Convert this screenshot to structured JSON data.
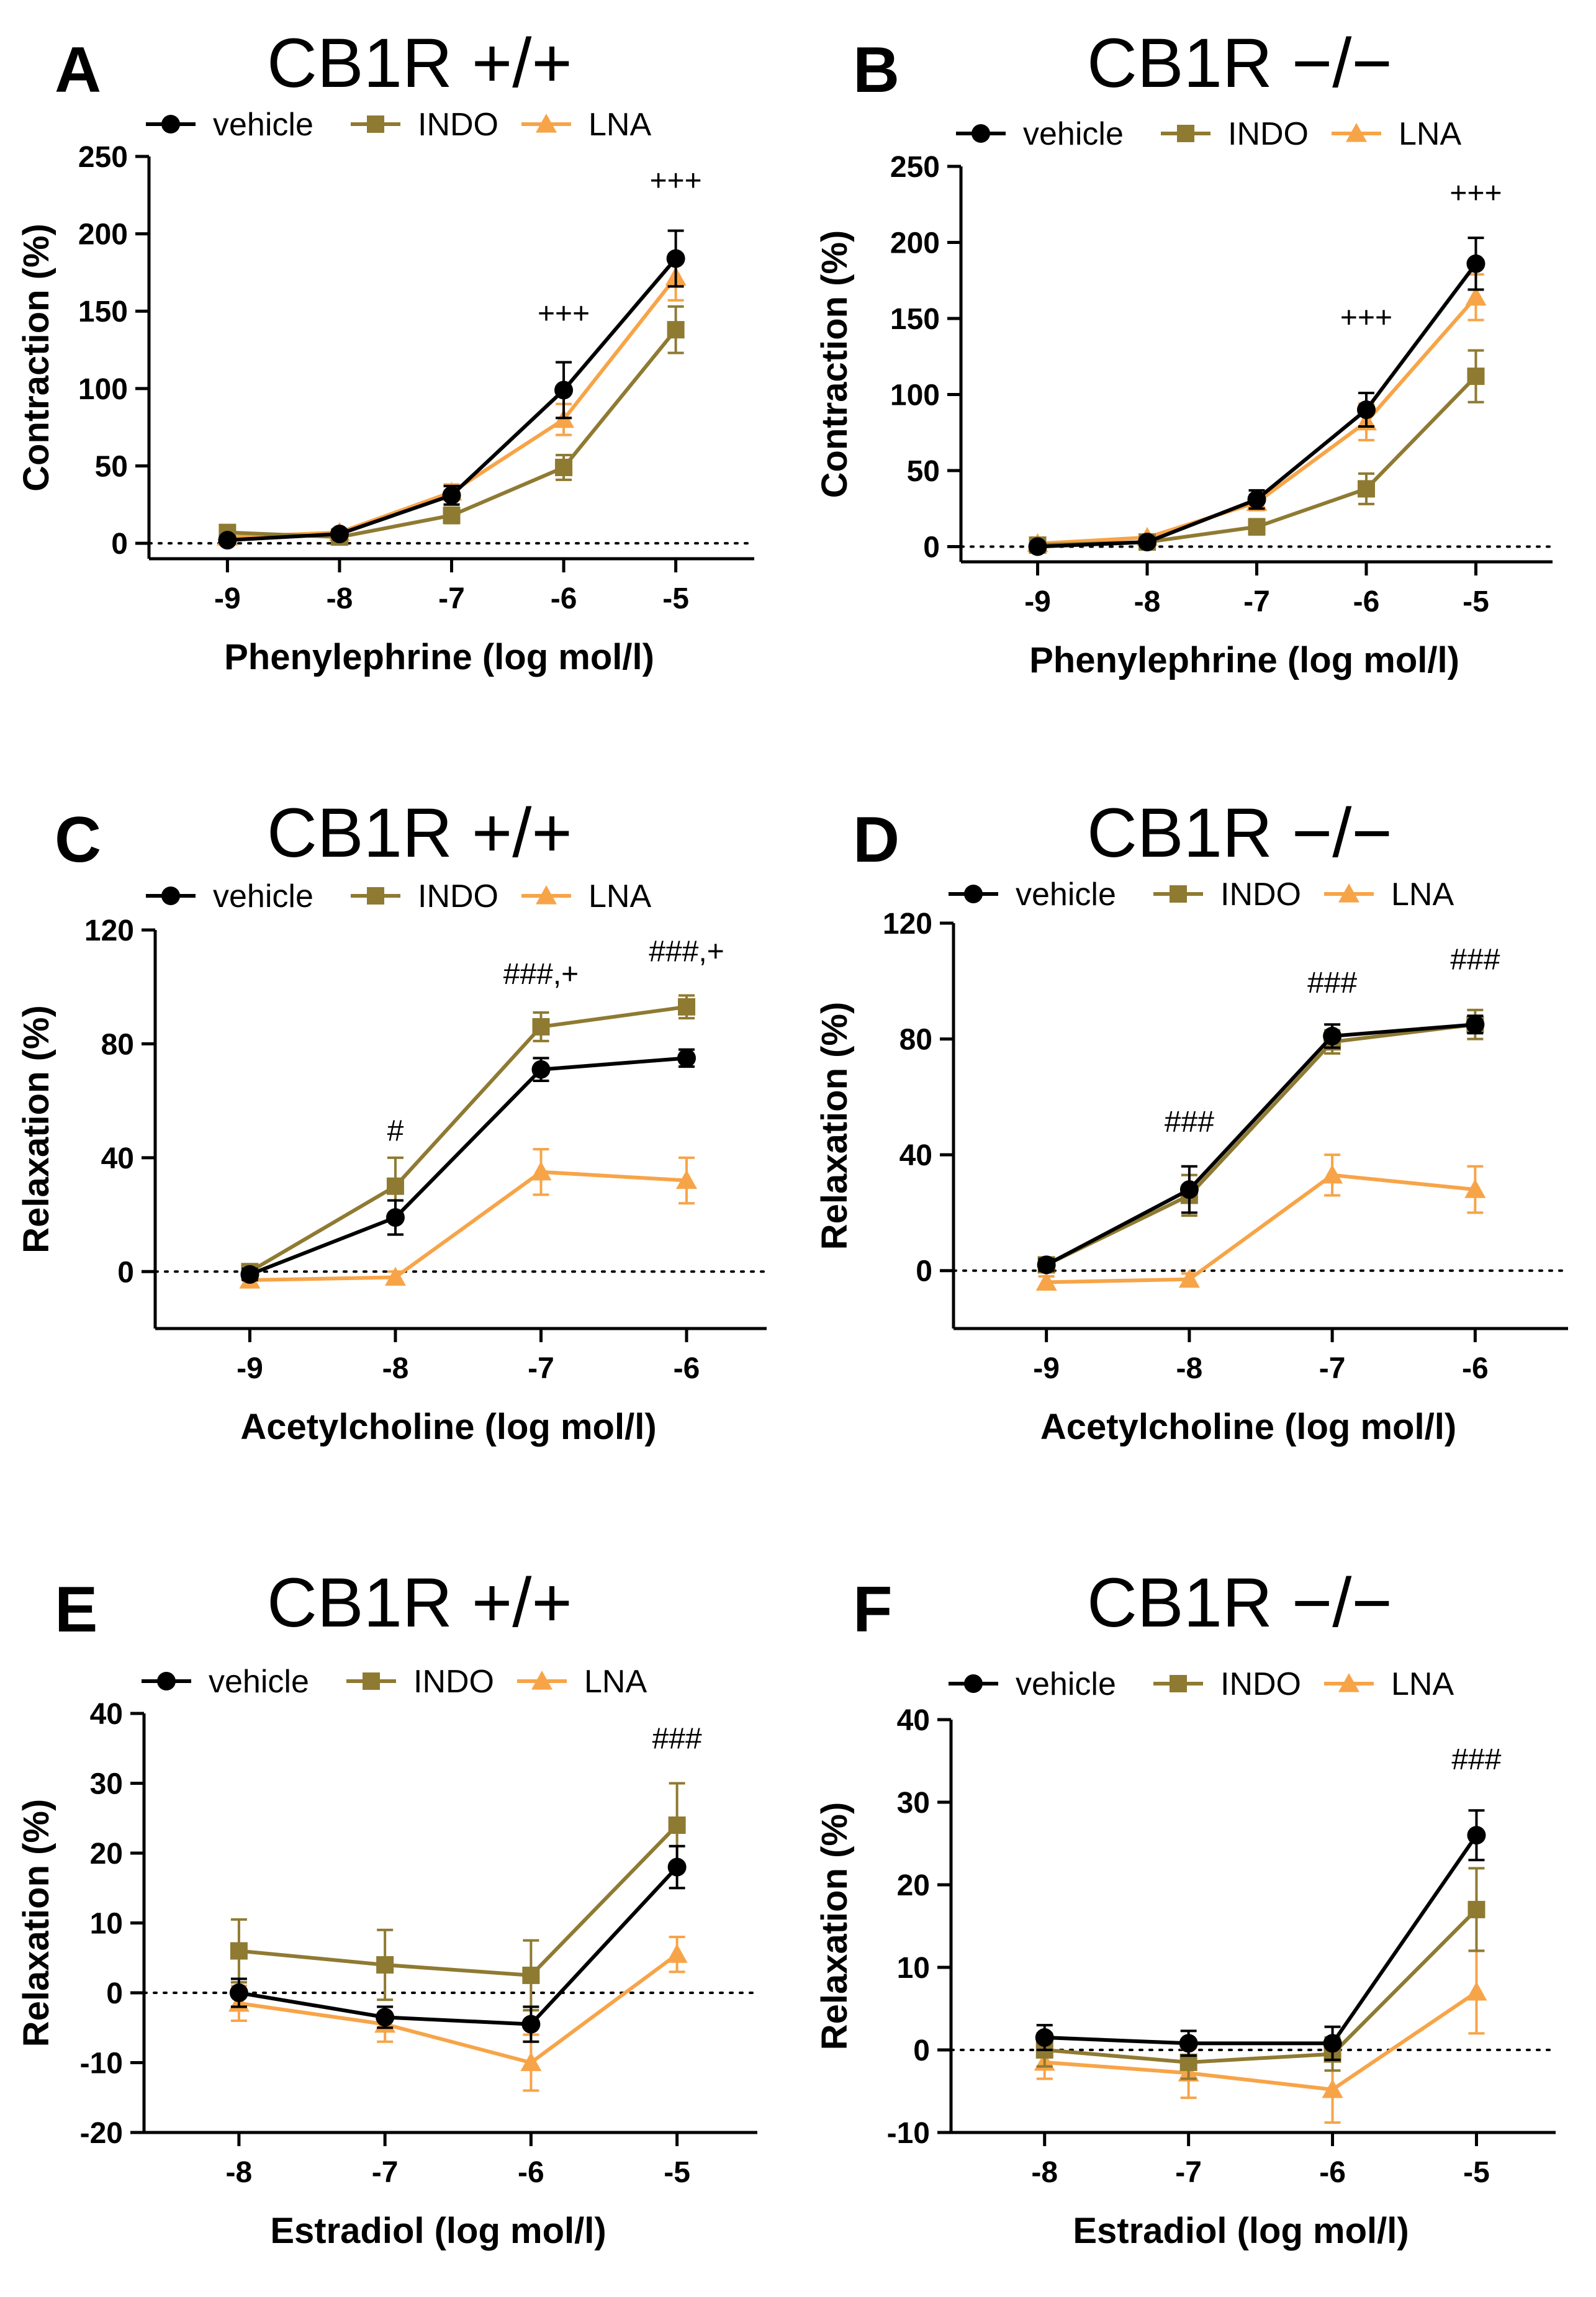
{
  "figure": {
    "colors": {
      "vehicle": "#000000",
      "INDO": "#8F7A32",
      "LNA": "#F7A448"
    },
    "marker_icons": {
      "vehicle": "circle",
      "INDO": "square",
      "LNA": "triangle"
    }
  },
  "chart_data": [
    {
      "panel": "A",
      "title": "CB1R +/+",
      "type": "line",
      "xlabel": "Phenylephrine (log mol/l)",
      "ylabel": "Contraction  (%)",
      "x": [
        -9,
        -8,
        -7,
        -6,
        -5
      ],
      "x_tick_labels": [
        "-9",
        "-8",
        "-7",
        "-6",
        "-5"
      ],
      "xlim": [
        -9.7,
        -4.3
      ],
      "ylim": [
        -10,
        250
      ],
      "y_ticks": [
        0,
        50,
        100,
        150,
        200,
        250
      ],
      "y_tick_labels": [
        "0",
        "50",
        "100",
        "150",
        "200",
        "250"
      ],
      "reference_line": 0,
      "legend": [
        "vehicle",
        "INDO",
        "LNA"
      ],
      "series": [
        {
          "name": "vehicle",
          "values": [
            2,
            6,
            31,
            99,
            184
          ],
          "errors": [
            2,
            2,
            6,
            18,
            18
          ]
        },
        {
          "name": "INDO",
          "values": [
            7,
            4,
            18,
            49,
            138
          ],
          "errors": [
            2,
            2,
            5,
            8,
            15
          ]
        },
        {
          "name": "LNA",
          "values": [
            4,
            7,
            33,
            80,
            172
          ],
          "errors": [
            2,
            2,
            5,
            10,
            15
          ]
        }
      ],
      "annotations": [
        {
          "text": "+++",
          "x": -6,
          "y": 142
        },
        {
          "text": "+++",
          "x": -5,
          "y": 228
        }
      ]
    },
    {
      "panel": "B",
      "title": "CB1R −/−",
      "type": "line",
      "xlabel": "Phenylephrine (log mol/l)",
      "ylabel": "Contraction  (%)",
      "x": [
        -9,
        -8,
        -7,
        -6,
        -5
      ],
      "x_tick_labels": [
        "-9",
        "-8",
        "-7",
        "-6",
        "-5"
      ],
      "xlim": [
        -9.7,
        -4.3
      ],
      "ylim": [
        -10,
        250
      ],
      "y_ticks": [
        0,
        50,
        100,
        150,
        200,
        250
      ],
      "y_tick_labels": [
        "0",
        "50",
        "100",
        "150",
        "200",
        "250"
      ],
      "reference_line": 0,
      "legend": [
        "vehicle",
        "INDO",
        "LNA"
      ],
      "series": [
        {
          "name": "vehicle",
          "values": [
            0,
            3,
            31,
            90,
            186
          ],
          "errors": [
            2,
            2,
            6,
            11,
            17
          ]
        },
        {
          "name": "INDO",
          "values": [
            1,
            3,
            13,
            38,
            112
          ],
          "errors": [
            2,
            2,
            5,
            10,
            17
          ]
        },
        {
          "name": "LNA",
          "values": [
            2,
            6,
            29,
            82,
            164
          ],
          "errors": [
            2,
            2,
            5,
            12,
            15
          ]
        }
      ],
      "annotations": [
        {
          "text": "+++",
          "x": -6,
          "y": 144
        },
        {
          "text": "+++",
          "x": -5,
          "y": 226
        }
      ]
    },
    {
      "panel": "C",
      "title": "CB1R +/+",
      "type": "line",
      "xlabel": "Acetylcholine (log mol/l)",
      "ylabel": "Relaxation  (%)",
      "x": [
        -9,
        -8,
        -7,
        -6
      ],
      "x_tick_labels": [
        "-9",
        "-8",
        "-7",
        "-6"
      ],
      "xlim": [
        -9.65,
        -5.45
      ],
      "ylim": [
        -20,
        120
      ],
      "y_ticks": [
        0,
        40,
        80,
        120
      ],
      "y_tick_labels": [
        "0",
        "40",
        "80",
        "120"
      ],
      "reference_line": 0,
      "legend": [
        "vehicle",
        "INDO",
        "LNA"
      ],
      "series": [
        {
          "name": "vehicle",
          "values": [
            -1,
            19,
            71,
            75
          ],
          "errors": [
            2,
            6,
            4,
            3
          ]
        },
        {
          "name": "INDO",
          "values": [
            0,
            30,
            86,
            93
          ],
          "errors": [
            2,
            10,
            5,
            4
          ]
        },
        {
          "name": "LNA",
          "values": [
            -3,
            -2,
            35,
            32
          ],
          "errors": [
            2,
            2,
            8,
            8
          ]
        }
      ],
      "annotations": [
        {
          "text": "#",
          "x": -8,
          "y": 46
        },
        {
          "text": "###,+",
          "x": -7,
          "y": 101
        },
        {
          "text": "###,+",
          "x": -6,
          "y": 109
        }
      ]
    },
    {
      "panel": "D",
      "title": "CB1R −/−",
      "type": "line",
      "xlabel": "Acetylcholine (log mol/l)",
      "ylabel": "Relaxation  (%)",
      "x": [
        -9,
        -8,
        -7,
        -6
      ],
      "x_tick_labels": [
        "-9",
        "-8",
        "-7",
        "-6"
      ],
      "xlim": [
        -9.65,
        -5.35
      ],
      "ylim": [
        -20,
        120
      ],
      "y_ticks": [
        0,
        40,
        80,
        120
      ],
      "y_tick_labels": [
        "0",
        "40",
        "80",
        "120"
      ],
      "reference_line": 0,
      "legend": [
        "vehicle",
        "INDO",
        "LNA"
      ],
      "series": [
        {
          "name": "vehicle",
          "values": [
            2,
            28,
            81,
            85
          ],
          "errors": [
            2,
            8,
            4,
            3
          ]
        },
        {
          "name": "INDO",
          "values": [
            2,
            26,
            79,
            85
          ],
          "errors": [
            2,
            7,
            4,
            5
          ]
        },
        {
          "name": "LNA",
          "values": [
            -4,
            -3,
            33,
            28
          ],
          "errors": [
            2,
            2,
            7,
            8
          ]
        }
      ],
      "annotations": [
        {
          "text": "###",
          "x": -8,
          "y": 48
        },
        {
          "text": "###",
          "x": -7,
          "y": 96
        },
        {
          "text": "###",
          "x": -6,
          "y": 104
        }
      ]
    },
    {
      "panel": "E",
      "title": "CB1R +/+",
      "type": "line",
      "xlabel": "Estradiol (log mol/l)",
      "ylabel": "Relaxation  (%)",
      "x": [
        -8,
        -7,
        -6,
        -5
      ],
      "x_tick_labels": [
        "-8",
        "-7",
        "-6",
        "-5"
      ],
      "xlim": [
        -8.65,
        -4.45
      ],
      "ylim": [
        -20,
        40
      ],
      "y_ticks": [
        -20,
        -10,
        0,
        10,
        20,
        30,
        40
      ],
      "y_tick_labels": [
        "-20",
        "-10",
        "0",
        "10",
        "20",
        "30",
        "40"
      ],
      "reference_line": 0,
      "legend": [
        "vehicle",
        "INDO",
        "LNA"
      ],
      "series": [
        {
          "name": "vehicle",
          "values": [
            0,
            -3.5,
            -4.5,
            18
          ],
          "errors": [
            2,
            1.5,
            2.5,
            3
          ]
        },
        {
          "name": "INDO",
          "values": [
            6,
            4,
            2.5,
            24
          ],
          "errors": [
            4.5,
            5,
            5,
            6
          ]
        },
        {
          "name": "LNA",
          "values": [
            -1.5,
            -4.5,
            -10,
            5.5
          ],
          "errors": [
            2.5,
            2.5,
            4,
            2.5
          ]
        }
      ],
      "annotations": [
        {
          "text": "###",
          "x": -5,
          "y": 35
        }
      ]
    },
    {
      "panel": "F",
      "title": "CB1R −/−",
      "type": "line",
      "xlabel": "Estradiol (log mol/l)",
      "ylabel": "Relaxation  (%)",
      "x": [
        -8,
        -7,
        -6,
        -5
      ],
      "x_tick_labels": [
        "-8",
        "-7",
        "-6",
        "-5"
      ],
      "xlim": [
        -8.65,
        -4.45
      ],
      "ylim": [
        -10,
        40
      ],
      "y_ticks": [
        -10,
        0,
        10,
        20,
        30,
        40
      ],
      "y_tick_labels": [
        "-10",
        "0",
        "10",
        "20",
        "30",
        "40"
      ],
      "reference_line": 0,
      "legend": [
        "vehicle",
        "INDO",
        "LNA"
      ],
      "series": [
        {
          "name": "vehicle",
          "values": [
            1.5,
            0.8,
            0.8,
            26
          ],
          "errors": [
            1.5,
            1.5,
            2,
            3
          ]
        },
        {
          "name": "INDO",
          "values": [
            0,
            -1.5,
            -0.5,
            17
          ],
          "errors": [
            2,
            2,
            2,
            5
          ]
        },
        {
          "name": "LNA",
          "values": [
            -1.5,
            -2.8,
            -4.8,
            7
          ],
          "errors": [
            2,
            3,
            4,
            5
          ]
        }
      ],
      "annotations": [
        {
          "text": "###",
          "x": -5,
          "y": 34
        }
      ]
    }
  ]
}
